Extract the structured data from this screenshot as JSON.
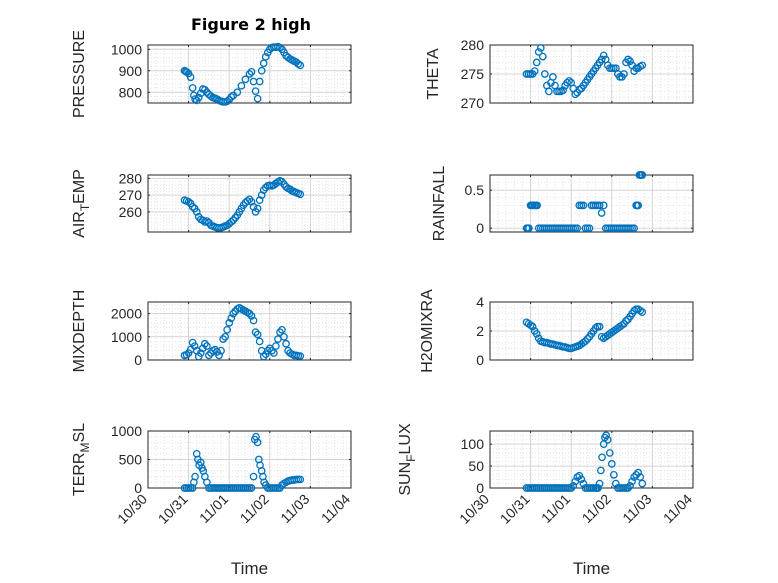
{
  "figure": {
    "title": "Figure 2 high",
    "xlabel": "Time",
    "marker_color": "#0072BD",
    "marker": "circle"
  },
  "chart_data": [
    {
      "type": "scatter",
      "title": "Figure 2 high",
      "xlabel": "",
      "ylabel": "PRESSURE",
      "ylim": [
        750,
        1020
      ],
      "yticks": [
        800,
        900,
        1000
      ],
      "ytick_labels": [
        "800",
        "900",
        "1000"
      ],
      "xlim": [
        0,
        5
      ],
      "xticks": [
        0,
        1,
        2,
        3,
        4,
        5
      ],
      "xtick_labels": [],
      "grid": true,
      "minor_grid": true,
      "x": [
        0.9,
        0.93,
        0.96,
        1.0,
        1.05,
        1.1,
        1.13,
        1.16,
        1.2,
        1.25,
        1.3,
        1.35,
        1.4,
        1.45,
        1.5,
        1.55,
        1.6,
        1.65,
        1.7,
        1.75,
        1.8,
        1.85,
        1.9,
        1.95,
        2.0,
        2.05,
        2.1,
        2.2,
        2.3,
        2.4,
        2.5,
        2.55,
        2.6,
        2.65,
        2.7,
        2.75,
        2.8,
        2.85,
        2.9,
        2.95,
        3.0,
        3.05,
        3.1,
        3.15,
        3.2,
        3.25,
        3.3,
        3.35,
        3.4,
        3.45,
        3.5,
        3.55,
        3.6,
        3.65,
        3.7,
        3.75
      ],
      "y": [
        900,
        897,
        893,
        887,
        870,
        820,
        785,
        768,
        762,
        775,
        795,
        815,
        812,
        800,
        790,
        782,
        775,
        772,
        768,
        762,
        758,
        755,
        755,
        758,
        765,
        778,
        785,
        800,
        830,
        860,
        885,
        895,
        850,
        805,
        770,
        850,
        900,
        935,
        965,
        985,
        1000,
        1008,
        1010,
        1010,
        1012,
        1008,
        1000,
        985,
        970,
        962,
        955,
        950,
        945,
        940,
        932,
        925
      ]
    },
    {
      "type": "scatter",
      "title": "",
      "xlabel": "",
      "ylabel": "THETA",
      "ylim": [
        270,
        280
      ],
      "yticks": [
        270,
        275,
        280
      ],
      "ytick_labels": [
        "270",
        "275",
        "280"
      ],
      "xlim": [
        0,
        5
      ],
      "xticks": [
        0,
        1,
        2,
        3,
        4,
        5
      ],
      "xtick_labels": [],
      "grid": true,
      "minor_grid": true,
      "x": [
        0.9,
        0.95,
        1.0,
        1.05,
        1.1,
        1.15,
        1.2,
        1.25,
        1.3,
        1.35,
        1.4,
        1.45,
        1.5,
        1.55,
        1.6,
        1.65,
        1.7,
        1.75,
        1.8,
        1.85,
        1.9,
        1.95,
        2.0,
        2.05,
        2.1,
        2.15,
        2.2,
        2.25,
        2.3,
        2.35,
        2.4,
        2.45,
        2.5,
        2.55,
        2.6,
        2.65,
        2.7,
        2.75,
        2.8,
        2.85,
        2.9,
        2.95,
        3.0,
        3.05,
        3.1,
        3.15,
        3.2,
        3.25,
        3.3,
        3.35,
        3.4,
        3.45,
        3.5,
        3.55,
        3.6,
        3.65,
        3.7,
        3.75
      ],
      "y": [
        275,
        275,
        275,
        275,
        275.5,
        277,
        278.8,
        279.5,
        278,
        275,
        273,
        272,
        273.5,
        274.5,
        273,
        272,
        272,
        272,
        272.2,
        273,
        273.5,
        273.8,
        273.5,
        272.5,
        271.5,
        271.8,
        272.3,
        272.5,
        273,
        273.5,
        274,
        274.5,
        275,
        275.5,
        276,
        276.5,
        277,
        277.5,
        278.2,
        277.5,
        276.5,
        276,
        276,
        276,
        276,
        275,
        274.5,
        274.5,
        275,
        277,
        277.5,
        277.2,
        276.5,
        275.5,
        276,
        276,
        276.3,
        276.5
      ]
    },
    {
      "type": "scatter",
      "title": "",
      "xlabel": "",
      "ylabel": "AIR_TEMP",
      "ylim": [
        248,
        282
      ],
      "yticks": [
        260,
        270,
        280
      ],
      "ytick_labels": [
        "260",
        "270",
        "280"
      ],
      "xlim": [
        0,
        5
      ],
      "xticks": [
        0,
        1,
        2,
        3,
        4,
        5
      ],
      "xtick_labels": [],
      "grid": true,
      "minor_grid": true,
      "x": [
        0.9,
        0.95,
        1.0,
        1.05,
        1.1,
        1.15,
        1.2,
        1.25,
        1.3,
        1.35,
        1.4,
        1.45,
        1.5,
        1.55,
        1.6,
        1.65,
        1.7,
        1.75,
        1.8,
        1.85,
        1.9,
        1.95,
        2.0,
        2.05,
        2.1,
        2.15,
        2.2,
        2.25,
        2.3,
        2.35,
        2.4,
        2.45,
        2.5,
        2.55,
        2.6,
        2.65,
        2.7,
        2.75,
        2.8,
        2.85,
        2.9,
        2.95,
        3.0,
        3.05,
        3.1,
        3.15,
        3.2,
        3.25,
        3.3,
        3.35,
        3.4,
        3.45,
        3.5,
        3.55,
        3.6,
        3.65,
        3.7,
        3.75
      ],
      "y": [
        267,
        266.5,
        266,
        265,
        263,
        262,
        260,
        257,
        255.5,
        255,
        254,
        254.5,
        253.5,
        252,
        251.5,
        251,
        250.5,
        250.5,
        250.5,
        251,
        251.5,
        252,
        253,
        254,
        255,
        256.5,
        258,
        260,
        262,
        264,
        265.5,
        266.5,
        267.5,
        266,
        263,
        260,
        262,
        267,
        270,
        273,
        274.5,
        275.5,
        275.8,
        275.5,
        276,
        277,
        277.8,
        278.5,
        278,
        276.5,
        275,
        274,
        273.5,
        272.5,
        272,
        271.5,
        271,
        270.5
      ]
    },
    {
      "type": "scatter",
      "title": "",
      "xlabel": "",
      "ylabel": "RAINFALL",
      "ylim": [
        -0.05,
        0.7
      ],
      "yticks": [
        0,
        0.5
      ],
      "ytick_labels": [
        "0",
        "0.5"
      ],
      "xlim": [
        0,
        5
      ],
      "xticks": [
        0,
        1,
        2,
        3,
        4,
        5
      ],
      "xtick_labels": [],
      "grid": true,
      "minor_grid": true,
      "x": [
        0.9,
        0.93,
        0.96,
        1.0,
        1.03,
        1.06,
        1.1,
        1.13,
        1.16,
        1.2,
        1.25,
        1.3,
        1.35,
        1.4,
        1.45,
        1.5,
        1.55,
        1.6,
        1.65,
        1.7,
        1.75,
        1.8,
        1.85,
        1.9,
        1.95,
        2.0,
        2.05,
        2.1,
        2.15,
        2.2,
        2.25,
        2.3,
        2.35,
        2.4,
        2.45,
        2.5,
        2.55,
        2.6,
        2.65,
        2.7,
        2.75,
        2.8,
        2.85,
        2.9,
        2.95,
        3.0,
        3.05,
        3.1,
        3.15,
        3.2,
        3.25,
        3.3,
        3.35,
        3.4,
        3.45,
        3.5,
        3.55,
        3.6,
        3.62,
        3.65,
        3.68,
        3.7,
        3.72,
        3.75
      ],
      "y": [
        0,
        0,
        0,
        0.3,
        0.3,
        0.3,
        0.3,
        0.3,
        0.3,
        0,
        0,
        0,
        0,
        0,
        0,
        0,
        0,
        0,
        0,
        0,
        0,
        0,
        0,
        0,
        0,
        0,
        0,
        0,
        0,
        0.3,
        0.3,
        0.3,
        0,
        0,
        0,
        0.3,
        0.3,
        0.3,
        0.3,
        0.3,
        0.2,
        0.3,
        0,
        0,
        0,
        0,
        0,
        0,
        0,
        0,
        0,
        0,
        0,
        0,
        0,
        0,
        0,
        0.3,
        0.3,
        0.3,
        0.7,
        0.7,
        0.7,
        0.7
      ]
    },
    {
      "type": "scatter",
      "title": "",
      "xlabel": "",
      "ylabel": "MIXDEPTH",
      "ylim": [
        0,
        2500
      ],
      "yticks": [
        0,
        1000,
        2000
      ],
      "ytick_labels": [
        "0",
        "1000",
        "2000"
      ],
      "xlim": [
        0,
        5
      ],
      "xticks": [
        0,
        1,
        2,
        3,
        4,
        5
      ],
      "xtick_labels": [],
      "grid": true,
      "minor_grid": true,
      "x": [
        0.9,
        0.95,
        1.0,
        1.05,
        1.1,
        1.15,
        1.2,
        1.25,
        1.3,
        1.35,
        1.4,
        1.45,
        1.5,
        1.55,
        1.6,
        1.65,
        1.7,
        1.75,
        1.8,
        1.85,
        1.9,
        1.95,
        2.0,
        2.05,
        2.1,
        2.15,
        2.2,
        2.25,
        2.3,
        2.35,
        2.4,
        2.45,
        2.5,
        2.55,
        2.6,
        2.65,
        2.7,
        2.75,
        2.8,
        2.85,
        2.9,
        2.95,
        3.0,
        3.05,
        3.1,
        3.15,
        3.2,
        3.25,
        3.3,
        3.35,
        3.4,
        3.45,
        3.5,
        3.55,
        3.6,
        3.65,
        3.7,
        3.75
      ],
      "y": [
        200,
        220,
        300,
        450,
        750,
        600,
        400,
        150,
        300,
        500,
        700,
        600,
        200,
        300,
        400,
        450,
        350,
        200,
        400,
        900,
        1000,
        1300,
        1600,
        1800,
        2000,
        2100,
        2200,
        2250,
        2200,
        2150,
        2100,
        2050,
        2000,
        1900,
        1700,
        1200,
        1100,
        800,
        400,
        150,
        250,
        400,
        500,
        400,
        300,
        600,
        900,
        1200,
        1300,
        1000,
        700,
        400,
        300,
        250,
        200,
        200,
        180,
        170
      ]
    },
    {
      "type": "scatter",
      "title": "",
      "xlabel": "",
      "ylabel": "H2OMIXRA",
      "ylim": [
        0,
        4
      ],
      "yticks": [
        0,
        2,
        4
      ],
      "ytick_labels": [
        "0",
        "2",
        "4"
      ],
      "xlim": [
        0,
        5
      ],
      "xticks": [
        0,
        1,
        2,
        3,
        4,
        5
      ],
      "xtick_labels": [],
      "grid": true,
      "minor_grid": true,
      "x": [
        0.9,
        0.95,
        1.0,
        1.05,
        1.1,
        1.15,
        1.2,
        1.25,
        1.3,
        1.35,
        1.4,
        1.45,
        1.5,
        1.55,
        1.6,
        1.65,
        1.7,
        1.75,
        1.8,
        1.85,
        1.9,
        1.95,
        2.0,
        2.05,
        2.1,
        2.15,
        2.2,
        2.25,
        2.3,
        2.35,
        2.4,
        2.45,
        2.5,
        2.55,
        2.6,
        2.65,
        2.7,
        2.75,
        2.8,
        2.85,
        2.9,
        2.95,
        3.0,
        3.05,
        3.1,
        3.15,
        3.2,
        3.25,
        3.3,
        3.35,
        3.4,
        3.45,
        3.5,
        3.55,
        3.6,
        3.65,
        3.7,
        3.75
      ],
      "y": [
        2.6,
        2.5,
        2.4,
        2.3,
        2.0,
        1.8,
        1.5,
        1.3,
        1.25,
        1.2,
        1.2,
        1.15,
        1.1,
        1.1,
        1.05,
        1.0,
        1.0,
        0.95,
        0.9,
        0.9,
        0.85,
        0.8,
        0.8,
        0.85,
        0.9,
        0.95,
        1.0,
        1.1,
        1.2,
        1.3,
        1.45,
        1.6,
        1.8,
        2.0,
        2.2,
        2.3,
        2.3,
        1.6,
        1.5,
        1.6,
        1.7,
        1.8,
        1.9,
        2.0,
        2.1,
        2.2,
        2.3,
        2.4,
        2.5,
        2.7,
        2.8,
        3.0,
        3.2,
        3.4,
        3.5,
        3.5,
        3.4,
        3.3
      ]
    },
    {
      "type": "scatter",
      "title": "",
      "xlabel": "Time",
      "ylabel": "TERR_MSL",
      "ylim": [
        0,
        1000
      ],
      "yticks": [
        0,
        500,
        1000
      ],
      "ytick_labels": [
        "0",
        "500",
        "1000"
      ],
      "xlim": [
        0,
        5
      ],
      "xticks": [
        0,
        1,
        2,
        3,
        4,
        5
      ],
      "xtick_labels": [
        "10/30",
        "10/31",
        "11/01",
        "11/02",
        "11/03",
        "11/04"
      ],
      "grid": true,
      "minor_grid": true,
      "x": [
        0.9,
        0.95,
        1.0,
        1.05,
        1.1,
        1.13,
        1.16,
        1.2,
        1.23,
        1.26,
        1.3,
        1.33,
        1.36,
        1.4,
        1.45,
        1.5,
        1.55,
        1.6,
        1.65,
        1.7,
        1.75,
        1.8,
        1.85,
        1.9,
        1.95,
        2.0,
        2.05,
        2.1,
        2.15,
        2.2,
        2.25,
        2.3,
        2.35,
        2.4,
        2.45,
        2.5,
        2.55,
        2.6,
        2.63,
        2.66,
        2.7,
        2.73,
        2.76,
        2.8,
        2.83,
        2.86,
        2.9,
        2.95,
        3.0,
        3.05,
        3.1,
        3.15,
        3.2,
        3.25,
        3.3,
        3.35,
        3.4,
        3.45,
        3.5,
        3.55,
        3.6,
        3.65,
        3.7,
        3.75
      ],
      "y": [
        0,
        0,
        0,
        0,
        0,
        100,
        200,
        600,
        500,
        400,
        450,
        350,
        300,
        200,
        100,
        0,
        0,
        0,
        0,
        0,
        0,
        0,
        0,
        0,
        0,
        0,
        0,
        0,
        0,
        0,
        0,
        0,
        0,
        0,
        0,
        0,
        0,
        200,
        850,
        900,
        800,
        500,
        400,
        300,
        200,
        100,
        50,
        0,
        0,
        0,
        0,
        0,
        0,
        0,
        50,
        80,
        100,
        120,
        130,
        140,
        140,
        150,
        150,
        150
      ]
    },
    {
      "type": "scatter",
      "title": "",
      "xlabel": "Time",
      "ylabel": "SUN_FLUX",
      "ylim": [
        0,
        130
      ],
      "yticks": [
        0,
        50,
        100
      ],
      "ytick_labels": [
        "0",
        "50",
        "100"
      ],
      "xlim": [
        0,
        5
      ],
      "xticks": [
        0,
        1,
        2,
        3,
        4,
        5
      ],
      "xtick_labels": [
        "10/30",
        "10/31",
        "11/01",
        "11/02",
        "11/03",
        "11/04"
      ],
      "grid": true,
      "minor_grid": true,
      "x": [
        0.9,
        0.95,
        1.0,
        1.05,
        1.1,
        1.15,
        1.2,
        1.25,
        1.3,
        1.35,
        1.4,
        1.45,
        1.5,
        1.55,
        1.6,
        1.65,
        1.7,
        1.75,
        1.8,
        1.85,
        1.9,
        1.95,
        2.0,
        2.05,
        2.1,
        2.15,
        2.2,
        2.25,
        2.3,
        2.35,
        2.4,
        2.45,
        2.5,
        2.55,
        2.6,
        2.63,
        2.66,
        2.7,
        2.73,
        2.76,
        2.8,
        2.83,
        2.86,
        2.9,
        2.95,
        3.0,
        3.05,
        3.1,
        3.15,
        3.2,
        3.25,
        3.3,
        3.35,
        3.4,
        3.45,
        3.5,
        3.55,
        3.6,
        3.65,
        3.7,
        3.75
      ],
      "y": [
        0,
        0,
        0,
        0,
        0,
        0,
        0,
        0,
        0,
        0,
        0,
        0,
        0,
        0,
        0,
        0,
        0,
        0,
        0,
        0,
        0,
        0,
        0,
        5,
        15,
        25,
        28,
        20,
        10,
        0,
        0,
        0,
        0,
        0,
        0,
        0,
        0,
        10,
        40,
        70,
        100,
        115,
        120,
        110,
        80,
        55,
        30,
        10,
        0,
        0,
        0,
        0,
        0,
        0,
        5,
        15,
        25,
        30,
        35,
        25,
        10
      ]
    }
  ]
}
